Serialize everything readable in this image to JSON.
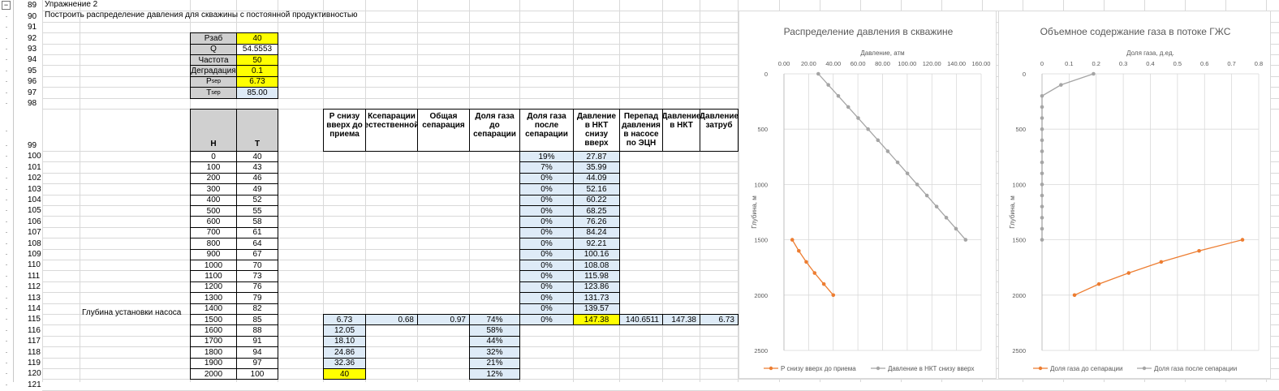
{
  "sheet": {
    "row_numbers": [
      "89",
      "90",
      "91",
      "92",
      "93",
      "94",
      "95",
      "96",
      "97",
      "98",
      "99",
      "100",
      "101",
      "102",
      "103",
      "104",
      "105",
      "106",
      "107",
      "108",
      "109",
      "110",
      "111",
      "112",
      "113",
      "114",
      "115",
      "116",
      "117",
      "118",
      "119",
      "120",
      "121"
    ],
    "title": "Упражнение 2",
    "subtitle": "Построить распределение давления для скважины с постоянной продуктивностью",
    "pump_depth_label": "Глубина установки насоса"
  },
  "params": [
    {
      "label": "Рзаб",
      "value": "40",
      "color": "yellow"
    },
    {
      "label": "Q",
      "value": "54.5553",
      "color": "white"
    },
    {
      "label": "Частота",
      "value": "50",
      "color": "yellow"
    },
    {
      "label": "Деградация",
      "value": "0.1",
      "color": "yellow"
    },
    {
      "label": "P",
      "sub": "sep",
      "value": "6.73",
      "color": "yellow"
    },
    {
      "label": "T",
      "sub": "sep",
      "value": "85.00",
      "color": "blue"
    }
  ],
  "table": {
    "headers": {
      "H": "H",
      "T": "T",
      "p_up": "Р снизу вверх до приема",
      "ksep": "Ксепарации естественной",
      "total_sep": "Общая сепарация",
      "gas_before": "Доля газа до сепарации",
      "gas_after": "Доля газа после сепарации",
      "p_nkt": "Давление в НКТ снизу вверх",
      "dp_pump": "Перепад давления в насосе по ЭЦН",
      "p_nkt2": "Давление в НКТ",
      "p_annulus": "Давление затруб"
    },
    "H": [
      "0",
      "100",
      "200",
      "300",
      "400",
      "500",
      "600",
      "700",
      "800",
      "900",
      "1000",
      "1100",
      "1200",
      "1300",
      "1400",
      "1500",
      "1600",
      "1700",
      "1800",
      "1900",
      "2000"
    ],
    "T": [
      "40",
      "43",
      "46",
      "49",
      "52",
      "55",
      "58",
      "61",
      "64",
      "67",
      "70",
      "73",
      "76",
      "79",
      "82",
      "85",
      "88",
      "91",
      "94",
      "97",
      "100"
    ],
    "gas_after": [
      "19%",
      "7%",
      "0%",
      "0%",
      "0%",
      "0%",
      "0%",
      "0%",
      "0%",
      "0%",
      "0%",
      "0%",
      "0%",
      "0%",
      "0%",
      "0%"
    ],
    "p_nkt": [
      "27.87",
      "35.99",
      "44.09",
      "52.16",
      "60.22",
      "68.25",
      "76.26",
      "84.24",
      "92.21",
      "100.16",
      "108.08",
      "115.98",
      "123.86",
      "131.73",
      "139.57",
      "147.38"
    ],
    "p_up": [
      "6.73",
      "12.05",
      "18.10",
      "24.86",
      "32.36",
      "40"
    ],
    "gas_before": [
      "74%",
      "58%",
      "44%",
      "32%",
      "21%",
      "12%"
    ],
    "pump_row": {
      "ksep": "0.68",
      "total_sep": "0.97",
      "dp_pump": "140.6511",
      "p_nkt2": "147.38",
      "p_annulus": "6.73"
    }
  },
  "chart_data": [
    {
      "type": "scatter",
      "title": "Распределение давления в скважине",
      "xlabel": "Давление, атм",
      "ylabel": "Глубина, м",
      "xlim": [
        0,
        160
      ],
      "ylim": [
        2500,
        0
      ],
      "x_ticks": [
        "0.00",
        "20.00",
        "40.00",
        "60.00",
        "80.00",
        "100.00",
        "120.00",
        "140.00",
        "160.00"
      ],
      "y_ticks": [
        "0",
        "500",
        "1000",
        "1500",
        "2000",
        "2500"
      ],
      "grid": true,
      "legend": "bottom",
      "series": [
        {
          "name": "Р снизу вверх  до приема",
          "color": "#ed7d31",
          "x": [
            6.73,
            12.05,
            18.1,
            24.86,
            32.36,
            40
          ],
          "y": [
            1500,
            1600,
            1700,
            1800,
            1900,
            2000
          ]
        },
        {
          "name": "Давление в НКТ снизу вверх",
          "color": "#a5a5a5",
          "x": [
            27.87,
            35.99,
            44.09,
            52.16,
            60.22,
            68.25,
            76.26,
            84.24,
            92.21,
            100.16,
            108.08,
            115.98,
            123.86,
            131.73,
            139.57,
            147.38
          ],
          "y": [
            0,
            100,
            200,
            300,
            400,
            500,
            600,
            700,
            800,
            900,
            1000,
            1100,
            1200,
            1300,
            1400,
            1500
          ]
        }
      ]
    },
    {
      "type": "scatter",
      "title": "Объемное содержание газа в потоке ГЖС",
      "xlabel": "Доля газа, д.ед.",
      "ylabel": "Глубина, м",
      "xlim": [
        0,
        0.8
      ],
      "ylim": [
        2500,
        0
      ],
      "x_ticks": [
        "0",
        "0.1",
        "0.2",
        "0.3",
        "0.4",
        "0.5",
        "0.6",
        "0.7",
        "0.8"
      ],
      "y_ticks": [
        "0",
        "500",
        "1000",
        "1500",
        "2000",
        "2500"
      ],
      "grid": true,
      "legend": "bottom",
      "series": [
        {
          "name": "Доля газа до сепарации",
          "color": "#ed7d31",
          "x": [
            0.74,
            0.58,
            0.44,
            0.32,
            0.21,
            0.12
          ],
          "y": [
            1500,
            1600,
            1700,
            1800,
            1900,
            2000
          ]
        },
        {
          "name": "Доля газа после сепарации",
          "color": "#a5a5a5",
          "x": [
            0.19,
            0.07,
            0,
            0,
            0,
            0,
            0,
            0,
            0,
            0,
            0,
            0,
            0,
            0,
            0,
            0
          ],
          "y": [
            0,
            100,
            200,
            300,
            400,
            500,
            600,
            700,
            800,
            900,
            1000,
            1100,
            1200,
            1300,
            1400,
            1500
          ]
        }
      ]
    }
  ]
}
